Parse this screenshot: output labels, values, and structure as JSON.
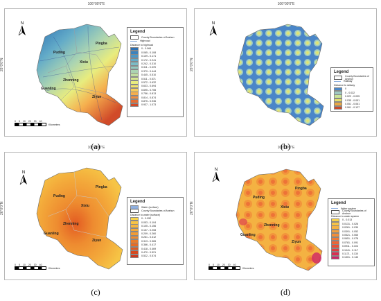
{
  "coord_lon": "106°00'0\"E",
  "coord_lat": "26°0'0\"N",
  "north_label": "N",
  "scale_labels": [
    "0",
    "5",
    "10",
    "20",
    "30",
    "40"
  ],
  "scale_unit": "Kilometers",
  "towns": [
    "Pingba",
    "Puding",
    "Xixiu",
    "Zhenning",
    "Guanling",
    "Ziyun"
  ],
  "panels": [
    {
      "caption": "(a)",
      "legend_title": "Legend",
      "legend_items": [
        "County Boundaries of Anshun",
        "Highroad"
      ],
      "sub_title": "Distance to highroad",
      "classes": [
        "0 - 0.064",
        "0.065 - 0.108",
        "0.109 - 0.171",
        "0.172 - 0.241",
        "0.242 - 0.310",
        "0.311 - 0.378",
        "0.379 - 0.444",
        "0.445 - 0.510",
        "0.511 - 0.571",
        "0.572 - 0.632",
        "0.633 - 0.694",
        "0.695 - 0.755",
        "0.756 - 0.813",
        "0.814 - 0.874",
        "0.875 - 0.936",
        "0.937 - 1.073"
      ],
      "colors": [
        "#2b6fb3",
        "#3c83bd",
        "#4e98c5",
        "#63abc8",
        "#7bbcc6",
        "#93c9bf",
        "#abd4b2",
        "#c1dea2",
        "#d6e790",
        "#e8ec7e",
        "#f4e46c",
        "#f7cc5c",
        "#f5af4e",
        "#ef8f41",
        "#e46d34",
        "#d14b29"
      ]
    },
    {
      "caption": "(b)",
      "legend_title": "Legend",
      "legend_items": [
        "County Boundaries of Anshun",
        "Railway"
      ],
      "sub_title": "Distance to railway",
      "classes": [
        "0",
        "0 - 0.022",
        "0.022 - 0.035",
        "0.035 - 0.051",
        "0.051 - 0.061",
        "0.061 - 0.127"
      ],
      "colors": [
        "#4a86c8",
        "#9ec9c3",
        "#c9e49a",
        "#e6e06a",
        "#e9a843",
        "#c84a2a"
      ]
    },
    {
      "caption": "(c)",
      "legend_title": "Legend",
      "legend_items": [
        "Water (surface)",
        "County Boundaries of Anshun"
      ],
      "sub_title": "Distance to water (surface)",
      "classes": [
        "0 - 0.052",
        "0.053 - 0.104",
        "0.105 - 0.156",
        "0.157 - 0.208",
        "0.209 - 0.260",
        "0.261 - 0.312",
        "0.313 - 0.365",
        "0.366 - 0.417",
        "0.418 - 0.469",
        "0.470 - 0.521",
        "0.522 - 0.574"
      ],
      "colors": [
        "#f6d24a",
        "#f6c445",
        "#f5b63f",
        "#f3a83a",
        "#f19b35",
        "#ee8c30",
        "#ea7c2b",
        "#e56c27",
        "#de5b23",
        "#d6491f",
        "#cc371c"
      ]
    },
    {
      "caption": "(d)",
      "legend_title": "Legend",
      "legend_items": [
        "Water system",
        "County Boundaries of Anshun"
      ],
      "sub_title": "Distance to water system",
      "classes": [
        "0 - 0.013",
        "0.0131 - 0.026",
        "0.0261 - 0.039",
        "0.0391 - 0.052",
        "0.0521 - 0.065",
        "0.0651 - 0.078",
        "0.0781 - 0.091",
        "0.0911 - 0.104",
        "0.1041 - 0.117",
        "0.1171 - 0.130",
        "0.1301 - 0.143"
      ],
      "colors": [
        "#f6d34c",
        "#f5c347",
        "#f4b242",
        "#f3a03e",
        "#f18d3a",
        "#ef7937",
        "#ec6535",
        "#e85036",
        "#e23e40",
        "#da2f52",
        "#cf2466"
      ]
    }
  ]
}
